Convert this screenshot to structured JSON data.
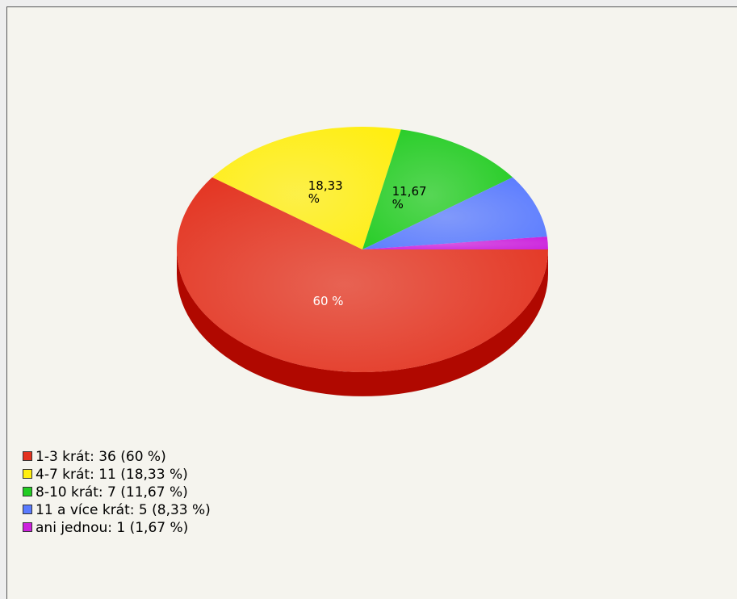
{
  "chart_data": {
    "type": "pie",
    "values": [
      60,
      18.33,
      11.67,
      8.33,
      1.67
    ],
    "value_labels": [
      "60 %",
      "18,33 %",
      "11,67 %",
      null,
      null
    ],
    "colors": [
      "#e3321f",
      "#ffee11",
      "#22cc22",
      "#5a7bff",
      "#cc22dd"
    ],
    "side_colors": [
      "#b00800",
      "#c8b800",
      "#109010",
      "#2f4fcc",
      "#8f1099"
    ],
    "label_colors": [
      "#ffffff",
      "#000000",
      "#000000",
      "#000000",
      "#000000"
    ],
    "legend_labels": [
      "1-3 krát: 36 (60 %)",
      "4-7 krát: 11 (18,33 %)",
      "8-10 krát: 7 (11,67 %)",
      "11 a více krát: 5 (8,33 %)",
      "ani jednou: 1 (1,67 %)"
    ]
  }
}
